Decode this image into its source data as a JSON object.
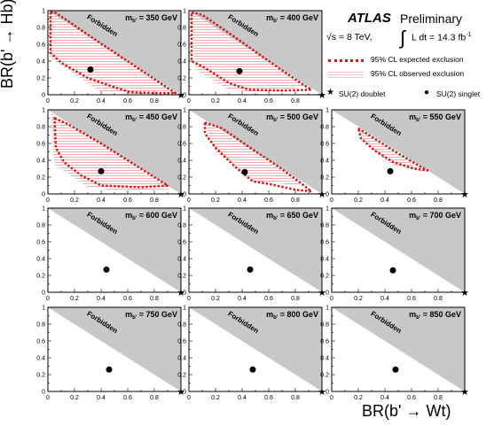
{
  "figure": {
    "ylabel": "BR(b' → Hb)",
    "xlabel": "BR(b' → Wt)"
  },
  "legend": {
    "atlas": "ATLAS",
    "preliminary": "Preliminary",
    "energy": "√s = 8 TeV,",
    "lumi": "L dt = 14.3 fb",
    "lumi_sup": "-1",
    "expected": "95% CL expected exclusion",
    "observed": "95% CL observed exclusion",
    "doublet": "SU(2) doublet",
    "singlet": "SU(2) singlet"
  },
  "colors": {
    "forbidden": "#c8c8c8",
    "expected": "#d11c1c",
    "observed_fill": "#f3b5b5"
  },
  "chart_data": {
    "type": "scatter",
    "xlim": [
      0,
      1
    ],
    "ylim": [
      0,
      1
    ],
    "xticks": [
      "0",
      "0.2",
      "0.4",
      "0.6",
      "0.8"
    ],
    "yticks": [
      "0",
      "0.2",
      "0.4",
      "0.6",
      "0.8",
      "1"
    ],
    "forbidden_label": "Forbidden",
    "doublet_point": [
      1,
      0
    ],
    "panels": [
      {
        "mass": "m",
        "sub": "b'",
        "rest": " = 350 GeV",
        "singlet": [
          0.32,
          0.3
        ],
        "exp": [
          [
            0.02,
            0.98
          ],
          [
            0.05,
            0.98
          ],
          [
            0.12,
            0.91
          ],
          [
            0.35,
            0.66
          ],
          [
            0.55,
            0.45
          ],
          [
            0.75,
            0.24
          ],
          [
            0.9,
            0.08
          ],
          [
            0.96,
            0.02
          ],
          [
            0.8,
            0.02
          ],
          [
            0.62,
            0.03
          ],
          [
            0.48,
            0.1
          ],
          [
            0.3,
            0.2
          ],
          [
            0.1,
            0.38
          ],
          [
            0.02,
            0.5
          ]
        ],
        "obs": [
          [
            0.01,
            0.99
          ],
          [
            0.1,
            0.9
          ],
          [
            0.5,
            0.5
          ],
          [
            0.93,
            0.05
          ],
          [
            0.7,
            0.01
          ],
          [
            0.4,
            0.03
          ],
          [
            0.15,
            0.3
          ],
          [
            0.01,
            0.45
          ]
        ]
      },
      {
        "mass": "m",
        "sub": "b'",
        "rest": " = 400 GeV",
        "singlet": [
          0.38,
          0.28
        ],
        "exp": [
          [
            0.02,
            0.98
          ],
          [
            0.1,
            0.95
          ],
          [
            0.35,
            0.68
          ],
          [
            0.6,
            0.4
          ],
          [
            0.82,
            0.16
          ],
          [
            0.92,
            0.06
          ],
          [
            0.7,
            0.05
          ],
          [
            0.45,
            0.06
          ],
          [
            0.3,
            0.14
          ],
          [
            0.12,
            0.32
          ],
          [
            0.02,
            0.4
          ]
        ],
        "obs": [
          [
            0.01,
            0.99
          ],
          [
            0.4,
            0.62
          ],
          [
            0.88,
            0.1
          ],
          [
            0.6,
            0.02
          ],
          [
            0.3,
            0.06
          ],
          [
            0.05,
            0.3
          ]
        ]
      },
      {
        "mass": "m",
        "sub": "b'",
        "rest": " = 450 GeV",
        "singlet": [
          0.4,
          0.27
        ],
        "exp": [
          [
            0.05,
            0.9
          ],
          [
            0.15,
            0.83
          ],
          [
            0.4,
            0.6
          ],
          [
            0.6,
            0.4
          ],
          [
            0.8,
            0.2
          ],
          [
            0.9,
            0.1
          ],
          [
            0.7,
            0.08
          ],
          [
            0.55,
            0.09
          ],
          [
            0.4,
            0.1
          ],
          [
            0.25,
            0.22
          ],
          [
            0.12,
            0.38
          ],
          [
            0.06,
            0.55
          ]
        ],
        "obs": [
          [
            0.02,
            0.96
          ],
          [
            0.3,
            0.7
          ],
          [
            0.7,
            0.28
          ],
          [
            0.92,
            0.06
          ],
          [
            0.6,
            0.03
          ],
          [
            0.3,
            0.08
          ],
          [
            0.05,
            0.35
          ]
        ]
      },
      {
        "mass": "m",
        "sub": "b'",
        "rest": " = 500 GeV",
        "singlet": [
          0.42,
          0.26
        ],
        "exp": [
          [
            0.12,
            0.85
          ],
          [
            0.25,
            0.78
          ],
          [
            0.45,
            0.56
          ],
          [
            0.65,
            0.35
          ],
          [
            0.85,
            0.12
          ],
          [
            0.92,
            0.03
          ],
          [
            0.8,
            0.05
          ],
          [
            0.6,
            0.12
          ],
          [
            0.48,
            0.15
          ],
          [
            0.35,
            0.32
          ],
          [
            0.2,
            0.55
          ],
          [
            0.12,
            0.72
          ]
        ],
        "obs": [
          [
            0.1,
            0.88
          ],
          [
            0.5,
            0.5
          ],
          [
            0.85,
            0.1
          ],
          [
            0.5,
            0.15
          ],
          [
            0.2,
            0.5
          ]
        ]
      },
      {
        "mass": "m",
        "sub": "b'",
        "rest": " = 550 GeV",
        "singlet": [
          0.44,
          0.27
        ],
        "exp": [
          [
            0.2,
            0.78
          ],
          [
            0.32,
            0.66
          ],
          [
            0.5,
            0.48
          ],
          [
            0.66,
            0.33
          ],
          [
            0.72,
            0.28
          ],
          [
            0.62,
            0.3
          ],
          [
            0.46,
            0.38
          ],
          [
            0.32,
            0.52
          ],
          [
            0.22,
            0.66
          ]
        ],
        "obs": [
          [
            0.18,
            0.8
          ],
          [
            0.5,
            0.46
          ],
          [
            0.7,
            0.26
          ],
          [
            0.45,
            0.35
          ],
          [
            0.25,
            0.6
          ]
        ]
      },
      {
        "mass": "m",
        "sub": "b'",
        "rest": " = 600 GeV",
        "singlet": [
          0.44,
          0.27
        ],
        "exp": [],
        "obs": []
      },
      {
        "mass": "m",
        "sub": "b'",
        "rest": " = 650 GeV",
        "singlet": [
          0.46,
          0.27
        ],
        "exp": [],
        "obs": []
      },
      {
        "mass": "m",
        "sub": "b'",
        "rest": " = 700 GeV",
        "singlet": [
          0.46,
          0.26
        ],
        "exp": [],
        "obs": []
      },
      {
        "mass": "m",
        "sub": "b'",
        "rest": " = 750 GeV",
        "singlet": [
          0.46,
          0.26
        ],
        "exp": [],
        "obs": []
      },
      {
        "mass": "m",
        "sub": "b'",
        "rest": " = 800 GeV",
        "singlet": [
          0.48,
          0.26
        ],
        "exp": [],
        "obs": []
      },
      {
        "mass": "m",
        "sub": "b'",
        "rest": " = 850 GeV",
        "singlet": [
          0.48,
          0.26
        ],
        "exp": [],
        "obs": []
      }
    ]
  }
}
